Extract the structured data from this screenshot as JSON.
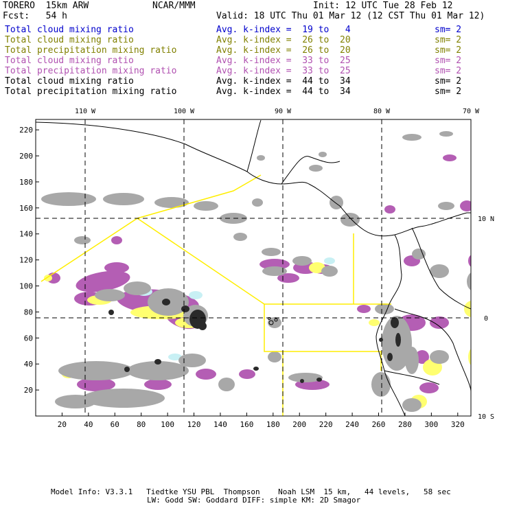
{
  "header": {
    "model": "TORERO  15km ARW",
    "org": "NCAR/MMM",
    "init": "Init: 12 UTC Tue 28 Feb 12",
    "fcst": "Fcst:   54 h",
    "valid": "Valid: 18 UTC Thu 01 Mar 12 (12 CST Thu 01 Mar 12)"
  },
  "legend_rows": [
    {
      "field": "Total cloud mixing ratio",
      "kindex": "Avg. k-index =  19 to   4",
      "sm": "sm= 2",
      "color": "#0000cc"
    },
    {
      "field": "Total cloud mixing ratio",
      "kindex": "Avg. k-index =  26 to  20",
      "sm": "sm= 2",
      "color": "#808000"
    },
    {
      "field": "Total precipitation mixing ratio",
      "kindex": "Avg. k-index =  26 to  20",
      "sm": "sm= 2",
      "color": "#808000"
    },
    {
      "field": "Total cloud mixing ratio",
      "kindex": "Avg. k-index =  33 to  25",
      "sm": "sm= 2",
      "color": "#b050b0"
    },
    {
      "field": "Total precipitation mixing ratio",
      "kindex": "Avg. k-index =  33 to  25",
      "sm": "sm= 2",
      "color": "#b050b0"
    },
    {
      "field": "Total cloud mixing ratio",
      "kindex": "Avg. k-index =  44 to  34",
      "sm": "sm= 2",
      "color": "#000000"
    },
    {
      "field": "Total precipitation mixing ratio",
      "kindex": "Avg. k-index =  44 to  34",
      "sm": "sm= 2",
      "color": "#000000"
    }
  ],
  "map": {
    "top_lon_labels": [
      "110 W",
      "100 W",
      "90 W",
      "80 W",
      "70 W"
    ],
    "right_lat_labels": [
      "10 N",
      "0",
      "10 S"
    ],
    "left_y_ticks": [
      "220",
      "200",
      "180",
      "160",
      "140",
      "120",
      "100",
      "80",
      "60",
      "40",
      "20"
    ],
    "bottom_x_ticks": [
      "20",
      "40",
      "60",
      "80",
      "100",
      "120",
      "140",
      "160",
      "180",
      "200",
      "220",
      "240",
      "260",
      "280",
      "300",
      "320"
    ],
    "colors": {
      "gray_cloud": "#a8a8a8",
      "dark_core": "#2a2a2a",
      "purple": "#b45eb4",
      "yellow": "#ffff70",
      "cyan": "#c8f0f4",
      "zone_line": "#ffee00"
    }
  },
  "footer": {
    "line1": "Model Info: V3.3.1   Tiedtke YSU PBL  Thompson    Noah LSM  15 km,   44 levels,   58 sec",
    "line2": "LW: Godd SW: Goddard DIFF: simple KM: 2D Smagor"
  }
}
